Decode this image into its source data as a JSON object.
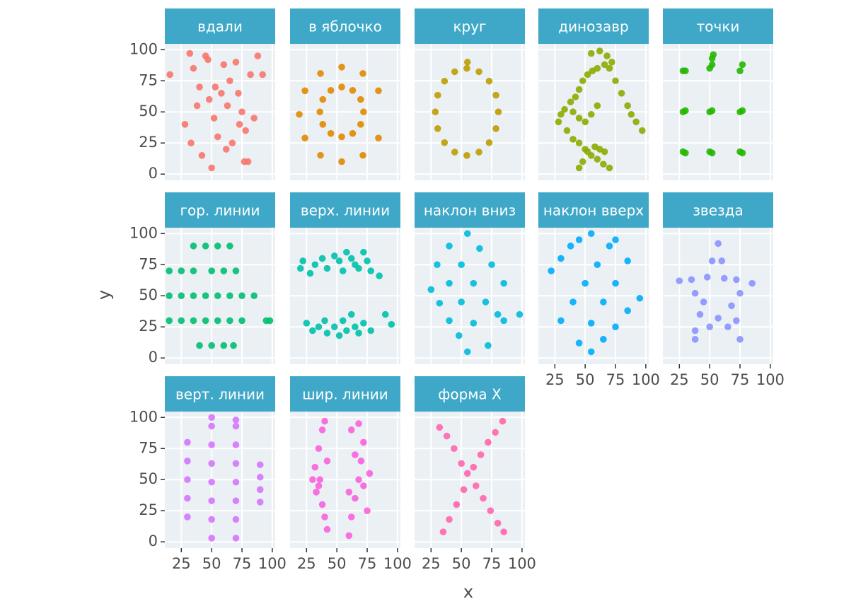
{
  "chart_data": {
    "type": "scatter",
    "xlabel": "x",
    "ylabel": "y",
    "xlim": [
      11.4,
      102.4
    ],
    "ylim": [
      -5,
      104.7
    ],
    "xticks": [
      25,
      50,
      75,
      100
    ],
    "yticks": [
      0,
      25,
      50,
      75,
      100
    ],
    "grid": true,
    "series": [
      {
        "name": "вдали",
        "color": "#F8766D",
        "x": [
          15.6,
          32,
          35,
          40,
          45,
          48,
          52,
          55,
          60,
          62,
          65,
          70,
          72,
          75,
          78,
          80,
          82,
          85,
          88,
          92,
          38,
          42,
          50,
          58,
          67,
          73,
          33,
          47,
          63,
          77,
          28,
          53
        ],
        "y": [
          80,
          97,
          85,
          70,
          95,
          60,
          45,
          30,
          88,
          20,
          75,
          90,
          65,
          50,
          35,
          10,
          80,
          45,
          95,
          80,
          55,
          15,
          5,
          65,
          25,
          40,
          25,
          92,
          55,
          10,
          40,
          70
        ]
      },
      {
        "name": "в яблочко",
        "color": "#E18A00",
        "x": [
          84.3,
          71.5,
          54,
          36.5,
          23.7,
          19,
          23.7,
          36.5,
          54,
          71.5,
          84.3,
          72,
          69.6,
          63,
          54,
          45,
          38.4,
          36,
          38.4,
          45,
          54,
          63,
          69.6
        ],
        "y": [
          67,
          80.9,
          86,
          80.9,
          67,
          48,
          29,
          15.1,
          10,
          15.1,
          29,
          50,
          60,
          67.3,
          70,
          67.3,
          60,
          50,
          40,
          32.7,
          30,
          32.7,
          40
        ]
      },
      {
        "name": "круг",
        "color": "#BE9C00",
        "x": [
          80.5,
          78.5,
          72.9,
          64.5,
          54.5,
          44.5,
          36.1,
          30.5,
          28.5,
          30.5,
          36.1,
          44.5,
          54.5,
          64.5,
          72.9,
          78.5,
          55
        ],
        "y": [
          50,
          63.4,
          74.7,
          82.3,
          85,
          82.3,
          74.7,
          63.4,
          50,
          36.6,
          25.3,
          17.7,
          15,
          17.7,
          25.3,
          36.6,
          90
        ]
      },
      {
        "name": "динозавр",
        "color": "#8CAB00",
        "x": [
          55,
          62,
          68,
          72,
          66,
          60,
          56,
          52,
          48,
          45,
          42,
          38,
          33,
          30,
          28,
          70,
          75,
          80,
          85,
          88,
          92,
          97,
          40,
          45,
          50,
          55,
          60,
          35,
          40,
          45,
          50,
          55,
          60,
          65,
          70,
          45,
          48,
          52,
          58,
          62,
          66
        ],
        "y": [
          97,
          99,
          95,
          90,
          88,
          85,
          83,
          80,
          75,
          68,
          62,
          58,
          52,
          48,
          42,
          85,
          75,
          65,
          55,
          48,
          42,
          35,
          50,
          45,
          42,
          48,
          55,
          35,
          28,
          25,
          20,
          15,
          12,
          8,
          5,
          5,
          10,
          18,
          22,
          20,
          18
        ]
      },
      {
        "name": "точки",
        "color": "#24B700",
        "x": [
          28,
          30,
          50,
          52,
          75,
          77,
          28,
          30,
          50,
          52,
          75,
          77,
          28,
          30,
          50,
          52,
          75,
          77,
          52,
          53
        ],
        "y": [
          83,
          83,
          85,
          88,
          83,
          88,
          50,
          51,
          50,
          51,
          50,
          51,
          18,
          17,
          18,
          17,
          18,
          17,
          93,
          96
        ]
      },
      {
        "name": "гор. линии",
        "color": "#00BE70",
        "x": [
          35,
          45,
          55,
          65,
          15,
          25,
          35,
          50,
          60,
          70,
          15,
          25,
          35,
          45,
          55,
          65,
          75,
          85,
          15,
          25,
          35,
          45,
          55,
          65,
          75,
          95,
          98,
          40,
          50,
          60,
          68
        ],
        "y": [
          90,
          90,
          90,
          90,
          70,
          70,
          70,
          70,
          70,
          70,
          50,
          50,
          50,
          50,
          50,
          50,
          50,
          50,
          30,
          30,
          30,
          30,
          30,
          30,
          30,
          30,
          30,
          10,
          10,
          10,
          10
        ]
      },
      {
        "name": "верх. линии",
        "color": "#00C1AB",
        "x": [
          20,
          22,
          28,
          32,
          38,
          42,
          48,
          52,
          55,
          58,
          62,
          65,
          68,
          72,
          75,
          78,
          85,
          25,
          30,
          35,
          40,
          42,
          48,
          52,
          55,
          58,
          62,
          65,
          68,
          72,
          78,
          90,
          95
        ],
        "y": [
          72,
          78,
          68,
          75,
          80,
          72,
          82,
          78,
          70,
          85,
          80,
          75,
          72,
          85,
          78,
          70,
          66,
          28,
          22,
          25,
          30,
          20,
          25,
          18,
          30,
          22,
          35,
          25,
          20,
          28,
          22,
          35,
          27
        ]
      },
      {
        "name": "наклон вниз",
        "color": "#00BBDA",
        "x": [
          25,
          32,
          40,
          48,
          55,
          30,
          40,
          50,
          60,
          72,
          40,
          50,
          60,
          70,
          80,
          85,
          55,
          65,
          75,
          85,
          98
        ],
        "y": [
          55,
          44,
          30,
          18,
          5,
          75,
          60,
          45,
          28,
          10,
          90,
          75,
          60,
          45,
          35,
          30,
          100,
          88,
          75,
          60,
          35
        ]
      },
      {
        "name": "наклон вверх",
        "color": "#00ACFC",
        "x": [
          22,
          30,
          38,
          45,
          55,
          30,
          40,
          50,
          60,
          70,
          75,
          45,
          55,
          65,
          75,
          85,
          55,
          65,
          75,
          85,
          95
        ],
        "y": [
          70,
          80,
          90,
          95,
          100,
          30,
          45,
          60,
          75,
          90,
          95,
          12,
          28,
          45,
          60,
          78,
          5,
          15,
          25,
          38,
          48
        ]
      },
      {
        "name": "звезда",
        "color": "#8B93FF",
        "x": [
          57,
          52,
          48,
          35,
          25,
          38,
          45,
          42,
          38,
          38,
          50,
          57,
          65,
          75,
          72,
          68,
          75,
          85,
          72,
          62,
          60
        ],
        "y": [
          92,
          78,
          65,
          63,
          62,
          52,
          45,
          35,
          22,
          15,
          25,
          32,
          25,
          15,
          30,
          42,
          52,
          60,
          63,
          64,
          78
        ]
      },
      {
        "name": "верт. линии",
        "color": "#D575FE",
        "x": [
          30,
          30,
          30,
          30,
          30,
          50,
          50,
          50,
          50,
          50,
          50,
          50,
          50,
          70,
          70,
          70,
          70,
          70,
          70,
          70,
          70,
          90,
          90,
          90,
          90
        ],
        "y": [
          20,
          35,
          50,
          65,
          80,
          3,
          18,
          33,
          48,
          63,
          78,
          93,
          100,
          3,
          18,
          33,
          48,
          63,
          78,
          93,
          98,
          32,
          42,
          52,
          62
        ]
      },
      {
        "name": "шир. линии",
        "color": "#F962DD",
        "x": [
          32,
          35,
          38,
          40,
          36,
          33,
          38,
          40,
          42,
          35,
          42,
          30,
          60,
          62,
          65,
          68,
          70,
          72,
          68,
          62,
          65,
          72,
          75,
          60,
          77
        ],
        "y": [
          60,
          75,
          90,
          97,
          50,
          40,
          30,
          20,
          10,
          45,
          65,
          50,
          5,
          20,
          35,
          50,
          65,
          80,
          95,
          90,
          70,
          45,
          25,
          40,
          55
        ]
      },
      {
        "name": "форма X",
        "color": "#FF65AC",
        "x": [
          32,
          38,
          44,
          50,
          55,
          62,
          68,
          74,
          80,
          85,
          35,
          40,
          46,
          52,
          60,
          66,
          72,
          78,
          84
        ],
        "y": [
          92,
          85,
          75,
          63,
          55,
          45,
          35,
          25,
          15,
          8,
          8,
          18,
          30,
          42,
          60,
          70,
          80,
          88,
          97
        ]
      }
    ]
  }
}
